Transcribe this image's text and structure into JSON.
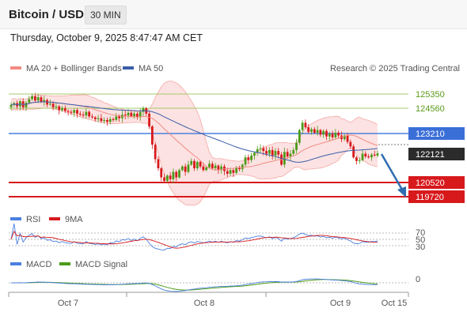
{
  "header": {
    "title": "Bitcoin / USD",
    "interval": "30 MIN"
  },
  "datetime": "Thursday, October 9, 2025 8:47:47 AM CET",
  "legend": {
    "ma20_label": "MA 20 + Bollinger Bands",
    "ma50_label": "MA 50",
    "credit": "Research © 2025 Trading Central",
    "ma20_color": "#f28b82",
    "ma50_color": "#3a5ea8"
  },
  "levels": [
    {
      "value": "125350",
      "style": "green-text"
    },
    {
      "value": "124560",
      "style": "green-text"
    },
    {
      "value": "123210",
      "style": "blue-box"
    },
    {
      "value": "122121",
      "style": "dark-box"
    },
    {
      "value": "120520",
      "style": "red-box"
    },
    {
      "value": "119720",
      "style": "red-box"
    }
  ],
  "rsi": {
    "label": "RSI",
    "ma_label": "9MA",
    "ticks": [
      "70",
      "50",
      "30"
    ]
  },
  "macd": {
    "label": "MACD",
    "signal_label": "MACD Signal",
    "tick": "0"
  },
  "xaxis": {
    "labels": [
      "Oct 7",
      "Oct 8",
      "Oct 9",
      "Oct 15"
    ]
  },
  "chart_data": {
    "type": "candlestick",
    "title": "Bitcoin / USD",
    "interval": "30 MIN",
    "price_levels": {
      "resistance": [
        125350,
        124560,
        123210
      ],
      "last_price": 122121,
      "support": [
        120520,
        119720
      ]
    },
    "close": [
      124780,
      124880,
      124700,
      124980,
      124650,
      124900,
      125100,
      125250,
      125020,
      125200,
      124950,
      125050,
      124800,
      124850,
      124650,
      124700,
      124500,
      124600,
      124450,
      124400,
      124350,
      124500,
      124300,
      124250,
      124200,
      124400,
      124150,
      124100,
      124000,
      124050,
      123900,
      123950,
      123850,
      124000,
      123950,
      124150,
      124050,
      124250,
      124200,
      124350,
      124150,
      124300,
      124100,
      124400,
      124600,
      124300,
      123600,
      122600,
      121800,
      121300,
      120800,
      120600,
      120900,
      120700,
      121100,
      120800,
      121200,
      121400,
      121100,
      121500,
      121700,
      121300,
      121650,
      121400,
      121200,
      121350,
      121550,
      121300,
      121450,
      121200,
      121400,
      121150,
      121000,
      121200,
      121050,
      121350,
      121250,
      121500,
      121900,
      121750,
      122000,
      122150,
      122350,
      122400,
      122250,
      122100,
      122300,
      122000,
      122250,
      122050,
      121500,
      122200,
      121950,
      122100,
      122300,
      122700,
      123400,
      123800,
      123550,
      123300,
      123450,
      123250,
      123400,
      123150,
      123350,
      123050,
      123200,
      123000,
      123250,
      123100,
      122900,
      123100,
      122750,
      122500,
      121900,
      121700,
      121750,
      122100,
      121950,
      121900,
      122050,
      122000,
      122121
    ],
    "indicators": [
      "MA 20 + Bollinger Bands",
      "MA 50",
      "RSI",
      "9MA",
      "MACD",
      "MACD Signal"
    ]
  }
}
